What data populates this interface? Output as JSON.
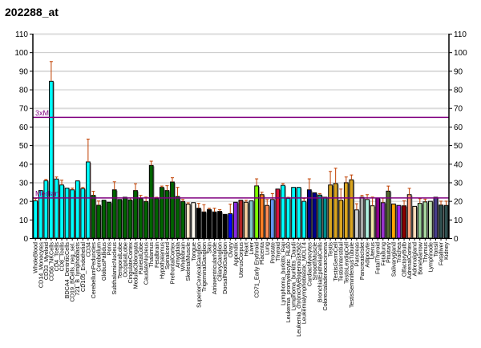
{
  "chart_data": {
    "type": "bar",
    "title": "202288_at",
    "xlabel": "",
    "ylabel": "",
    "ylim": [
      0,
      110
    ],
    "yticks": [
      "0",
      "10",
      "20",
      "30",
      "40",
      "50",
      "60",
      "70",
      "80",
      "90",
      "100",
      "110"
    ],
    "grid": true,
    "reference_lines": [
      {
        "label": "3xM",
        "value": 65,
        "color": "#800080"
      },
      {
        "label": "Median",
        "value": 21.6,
        "color": "#800080"
      }
    ],
    "error_color": "#c04000",
    "categories": [
      "WholeBlood",
      "CD14_Monocytes",
      "CD33_Myeloid",
      "CD56_NKCells",
      "CD4_Tcells",
      "CD8_Tcells",
      "BDCA4_DentriticCells",
      "CD19_BCells_neg_sel.",
      "721_B_lymphoblasts",
      "CD105_Endothelial",
      "CD34",
      "CerebellumPeduncles",
      "Cerebellum",
      "GlobusPallidus",
      "Pons",
      "SubthalamicNucleus",
      "TemporalLobe",
      "OccipitalLobe",
      "CingulateCortex",
      "MedullaOblongata",
      "ParietalLobe",
      "CaudateNucleus",
      "Thalamus",
      "Fetalbrain",
      "Hypothalamus",
      "Spinalcord",
      "PrefrontalCortex",
      "Amygdala",
      "Wholebrain",
      "SkeletalMuscle",
      "Tongue",
      "SuperiorCervicalGanglion",
      "TrigeminalGanglion",
      "Skin",
      "AtrioventricularNode",
      "CiliaryGanglion",
      "DorsalRootGanglion",
      "Ovary",
      "Appendix",
      "UterusCorpus",
      "Heart",
      "Liver",
      "CD71_Early Erythroid",
      "Placenta",
      "Lung",
      "Prostate",
      "Thyroid",
      "Lymphoma_burkitts_Raji",
      "Leukemia_promyelocytic_HL60",
      "Lymphoma_burkitts_Daudi",
      "Leukemia_chronicMyelogenousK562",
      "Leukemialymphoblastic_MOLT4",
      "CardiacMyocytes",
      "SmoothMuscle",
      "BronchialEpithelialCells",
      "Colorectaladenocarcinoma",
      "Testis",
      "TestisGermCell",
      "TestisInterstitial",
      "TestisLeydigCell",
      "TestisSeminiferousTubule",
      "Pancreas",
      "PancreaticIslet",
      "Adipocyte",
      "Uterus",
      "FetalThyroid",
      "Fetallung",
      "Pituitary",
      "Salivarygland",
      "Trachea",
      "OlfactoryBulb",
      "AdrenalCortex",
      "Adrenalgland",
      "BoneMarrow",
      "Thymus",
      "Lymphnode",
      "Tonsil",
      "Fetalliver",
      "Kidney"
    ],
    "values": [
      20.1,
      25.6,
      30.9,
      84.4,
      31.8,
      28.6,
      26.9,
      26.0,
      30.8,
      26.6,
      41.0,
      23.0,
      17.7,
      20.4,
      19.3,
      26.0,
      20.8,
      22.0,
      20.6,
      25.6,
      21.3,
      19.7,
      39.1,
      21.3,
      27.3,
      25.6,
      30.2,
      22.4,
      19.7,
      18.3,
      19.1,
      16.1,
      14.1,
      15.4,
      14.1,
      14.4,
      12.8,
      13.2,
      19.3,
      20.4,
      19.3,
      20.1,
      28.1,
      23.4,
      17.6,
      20.8,
      26.4,
      28.4,
      21.4,
      27.3,
      27.3,
      19.8,
      26.0,
      24.4,
      23.2,
      22.0,
      28.6,
      29.4,
      20.4,
      29.8,
      31.4,
      15.2,
      22.0,
      20.8,
      17.4,
      21.5,
      19.1,
      25.3,
      18.4,
      17.6,
      17.4,
      23.4,
      17.1,
      18.7,
      19.5,
      19.8,
      22.0,
      17.8,
      17.6
    ],
    "errors": [
      21.3,
      26.2,
      31.6,
      95.0,
      32.9,
      31.2,
      27.2,
      26.9,
      31.2,
      27.3,
      53.3,
      25.2,
      20.0,
      20.8,
      19.6,
      30.3,
      21.1,
      22.3,
      21.6,
      29.3,
      23.0,
      22.1,
      41.4,
      22.0,
      28.0,
      28.2,
      32.5,
      27.3,
      20.8,
      19.0,
      19.4,
      18.7,
      18.0,
      16.1,
      16.1,
      15.3,
      13.1,
      18.3,
      19.7,
      20.7,
      20.4,
      20.5,
      31.9,
      24.7,
      20.8,
      24.0,
      26.8,
      29.4,
      22.0,
      27.6,
      27.6,
      21.3,
      31.9,
      24.7,
      24.0,
      22.3,
      35.9,
      37.6,
      26.4,
      32.9,
      34.0,
      18.5,
      23.0,
      23.4,
      22.1,
      21.8,
      21.5,
      28.0,
      18.8,
      17.9,
      20.1,
      26.8,
      17.4,
      21.2,
      21.0,
      20.1,
      22.3,
      19.9,
      19.9
    ],
    "colors": [
      "#00ffff",
      "#00ffff",
      "#00ffff",
      "#00ffff",
      "#00ffff",
      "#00ffff",
      "#00ffff",
      "#00ffff",
      "#00ffff",
      "#00ffff",
      "#00ffff",
      "#006400",
      "#006400",
      "#006400",
      "#006400",
      "#006400",
      "#006400",
      "#006400",
      "#006400",
      "#006400",
      "#006400",
      "#006400",
      "#006400",
      "#006400",
      "#006400",
      "#006400",
      "#006400",
      "#006400",
      "#006400",
      "#ffe4c4",
      "#fffaf0",
      "#000000",
      "#000000",
      "#000000",
      "#000000",
      "#000000",
      "#000000",
      "#0000ff",
      "#8a2be2",
      "#b22222",
      "#f5d0a0",
      "#80c0c8",
      "#7fff00",
      "#ff7f24",
      "#ff8c55",
      "#6495ed",
      "#dc143c",
      "#00ffff",
      "#00ffff",
      "#00ffff",
      "#00ffff",
      "#00ffff",
      "#00008b",
      "#00008b",
      "#008b8b",
      "#008b8b",
      "#daa520",
      "#daa520",
      "#daa520",
      "#daa520",
      "#daa520",
      "#d3d3d3",
      "#a9a9a9",
      "#b0f0e0",
      "#eee8aa",
      "#8b008b",
      "#9932cc",
      "#556b2f",
      "#ffa500",
      "#a020f0",
      "#8b0000",
      "#ffa07a",
      "#ffdab9",
      "#98d098",
      "#a8d8a0",
      "#c0e0b0",
      "#483d8b",
      "#2f4f4f",
      "#305050"
    ]
  }
}
